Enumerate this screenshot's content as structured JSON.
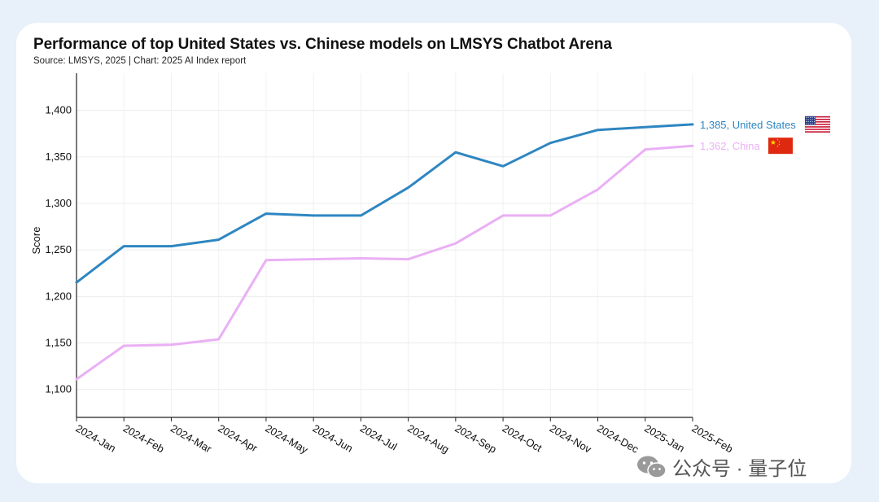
{
  "title": "Performance of top United States vs. Chinese models on LMSYS Chatbot Arena",
  "subtitle": "Source: LMSYS, 2025 | Chart: 2025 AI Index report",
  "watermark": {
    "text": "公众号 · 量子位",
    "icon": "wechat-icon"
  },
  "chart_data": {
    "type": "line",
    "title": "Performance of top United States vs. Chinese models on LMSYS Chatbot Arena",
    "ylabel": "Score",
    "xlabel": "",
    "ylim": [
      1070,
      1440
    ],
    "yticks": [
      1100,
      1150,
      1200,
      1250,
      1300,
      1350,
      1400
    ],
    "ytick_labels": [
      "1,100",
      "1,150",
      "1,200",
      "1,250",
      "1,300",
      "1,350",
      "1,400"
    ],
    "grid": true,
    "x": [
      "2024-Jan",
      "2024-Feb",
      "2024-Mar",
      "2024-Apr",
      "2024-May",
      "2024-Jun",
      "2024-Jul",
      "2024-Aug",
      "2024-Sep",
      "2024-Oct",
      "2024-Nov",
      "2024-Dec",
      "2025-Jan",
      "2025-Feb"
    ],
    "series": [
      {
        "name": "United States",
        "end_label": "1,385, United States",
        "color": "#2e86c1",
        "flag": "us-flag-icon",
        "values": [
          1215,
          1254,
          1254,
          1261,
          1289,
          1287,
          1287,
          1317,
          1355,
          1340,
          1365,
          1379,
          1382,
          1385
        ]
      },
      {
        "name": "China",
        "end_label": "1,362, China",
        "color": "#eab0f5",
        "flag": "china-flag-icon",
        "values": [
          1111,
          1147,
          1148,
          1154,
          1239,
          1240,
          1241,
          1240,
          1257,
          1287,
          1287,
          1315,
          1358,
          1362
        ]
      }
    ]
  }
}
